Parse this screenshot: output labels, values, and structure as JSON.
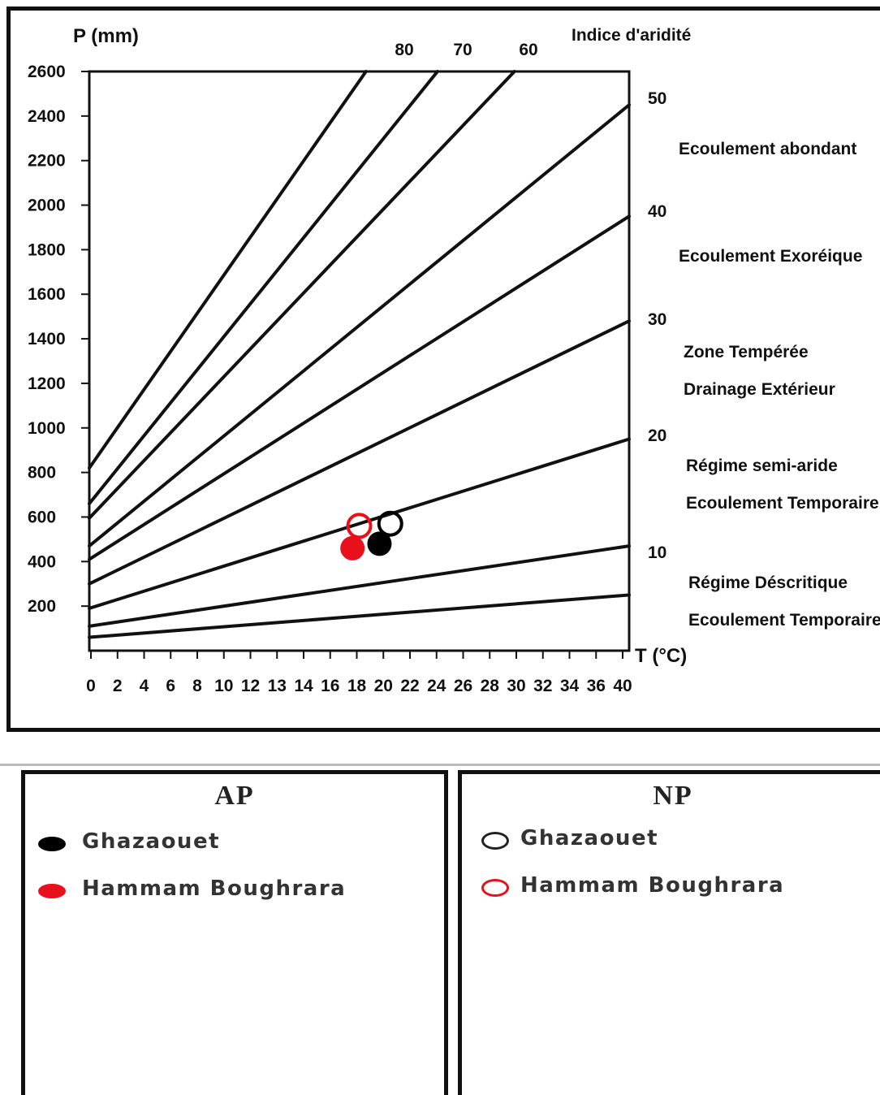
{
  "chart_data": {
    "type": "scatter",
    "title": "",
    "ylabel": "P (mm)",
    "xlabel": "T (°C)",
    "right_axis_label": "Indice d'aridité",
    "xlim": [
      0,
      40
    ],
    "ylim": [
      0,
      2600
    ],
    "x_ticks": [
      "0",
      "2",
      "4",
      "6",
      "8",
      "10",
      "12",
      "13",
      "14",
      "16",
      "18",
      "20",
      "22",
      "24",
      "26",
      "28",
      "30",
      "32",
      "34",
      "36",
      "40"
    ],
    "y_ticks": [
      "200",
      "400",
      "600",
      "800",
      "1000",
      "1200",
      "1400",
      "1600",
      "1800",
      "2000",
      "2200",
      "2400",
      "2600"
    ],
    "top_index_labels": [
      "80",
      "70",
      "60"
    ],
    "right_index_labels": [
      "50",
      "40",
      "30",
      "20",
      "10"
    ],
    "zones": [
      [
        "Ecoulement abondant"
      ],
      [
        "Ecoulement Exoréique"
      ],
      [
        "Zone Tempérée",
        "Drainage Extérieur"
      ],
      [
        "Régime semi-aride",
        "Ecoulement Temporaire"
      ],
      [
        "Régime Déscritique",
        "Ecoulement Temporaire"
      ]
    ],
    "aridity_lines": [
      {
        "p_at_0": 820,
        "p_at_40": null,
        "top_index": "80"
      },
      {
        "p_at_0": 660,
        "p_at_40": null,
        "top_index": "70"
      },
      {
        "p_at_0": 595,
        "p_at_40": null,
        "top_index": "60"
      },
      {
        "p_at_0": 470,
        "p_at_40": 2450,
        "right_index": "50"
      },
      {
        "p_at_0": 410,
        "p_at_40": 1950,
        "right_index": "40"
      },
      {
        "p_at_0": 300,
        "p_at_40": 1480,
        "right_index": "30"
      },
      {
        "p_at_0": 190,
        "p_at_40": 950,
        "right_index": "20"
      },
      {
        "p_at_0": 110,
        "p_at_40": 470,
        "right_index": "10"
      },
      {
        "p_at_0": 60,
        "p_at_40": 250,
        "right_index": ""
      }
    ],
    "series": [
      {
        "name": "Ghazaouet",
        "period": "AP",
        "style": "filled",
        "color": "#000000",
        "x": 21.5,
        "y": 480
      },
      {
        "name": "Hammam Boughrara",
        "period": "AP",
        "style": "filled",
        "color": "#e8101a",
        "x": 19.5,
        "y": 460
      },
      {
        "name": "Ghazaouet",
        "period": "NP",
        "style": "hollow",
        "color": "#000000",
        "x": 22.3,
        "y": 570
      },
      {
        "name": "Hammam Boughrara",
        "period": "NP",
        "style": "hollow",
        "color": "#e8101a",
        "x": 20.0,
        "y": 560
      }
    ],
    "grid": false
  },
  "legend_ap": {
    "title": "AP",
    "items": [
      {
        "label": "Ghazaouet",
        "color": "#000000",
        "style": "filled"
      },
      {
        "label": "Hammam Boughrara",
        "color": "#e8101a",
        "style": "filled"
      }
    ]
  },
  "legend_np": {
    "title": "NP",
    "items": [
      {
        "label": "Ghazaouet",
        "color": "#000000",
        "style": "hollow"
      },
      {
        "label": "Hammam Boughrara",
        "color": "#e8101a",
        "style": "hollow"
      }
    ]
  }
}
